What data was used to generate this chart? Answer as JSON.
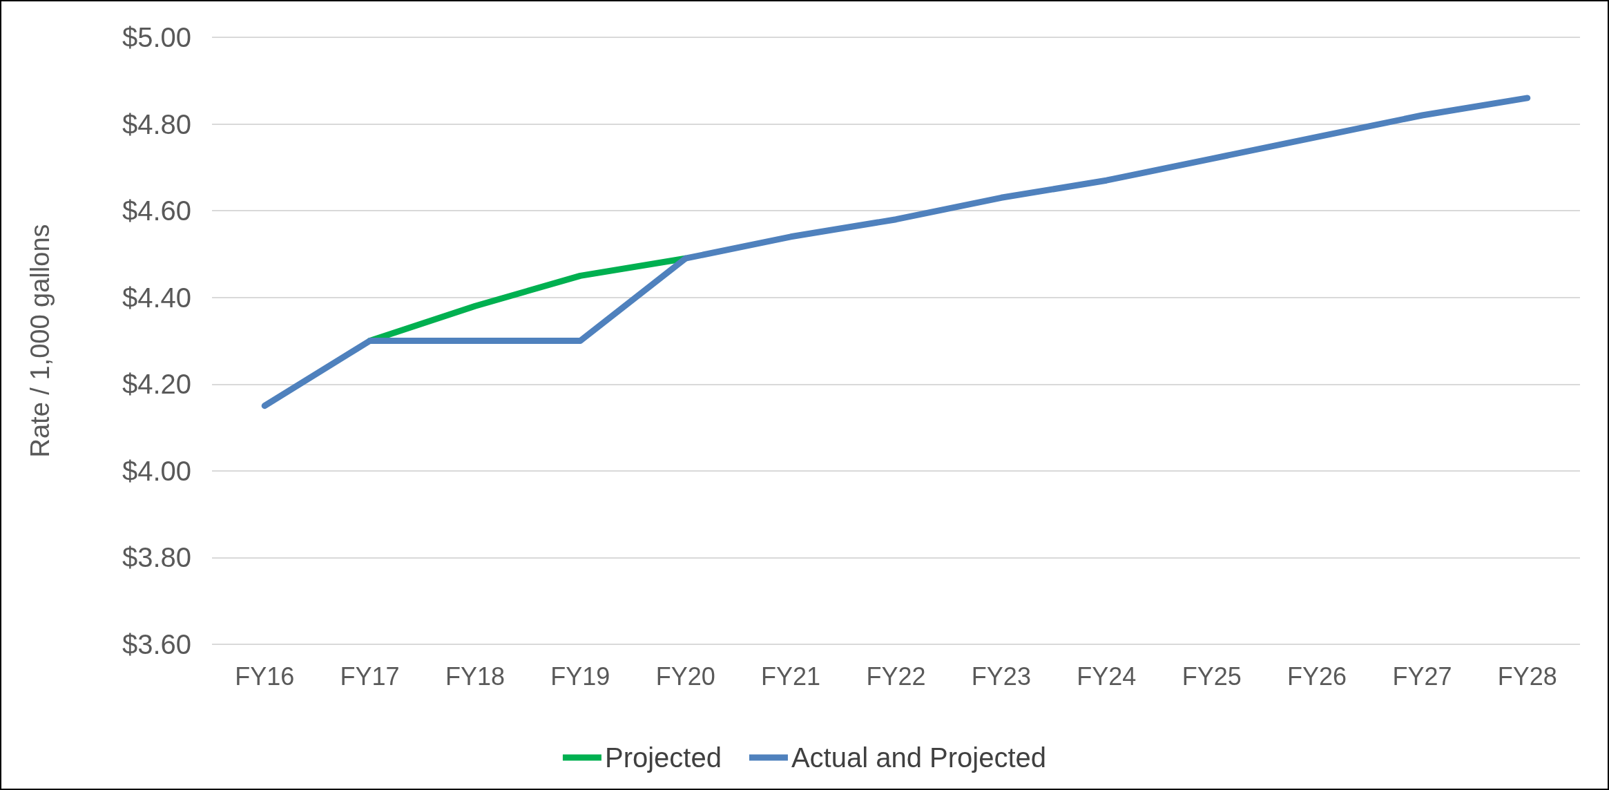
{
  "chart_data": {
    "type": "line",
    "ylabel": "Rate / 1,000 gallons",
    "categories": [
      "FY16",
      "FY17",
      "FY18",
      "FY19",
      "FY20",
      "FY21",
      "FY22",
      "FY23",
      "FY24",
      "FY25",
      "FY26",
      "FY27",
      "FY28"
    ],
    "series": [
      {
        "name": "Projected",
        "color": "#00b050",
        "values": [
          null,
          4.3,
          4.38,
          4.45,
          4.49,
          null,
          null,
          null,
          null,
          null,
          null,
          null,
          null
        ]
      },
      {
        "name": "Actual and Projected",
        "color": "#4f81bd",
        "values": [
          4.15,
          4.3,
          4.3,
          4.3,
          4.49,
          4.54,
          4.58,
          4.63,
          4.67,
          4.72,
          4.77,
          4.82,
          4.86
        ]
      }
    ],
    "ylim": [
      3.6,
      5.0
    ],
    "yticks": [
      {
        "value": 3.6,
        "label": "$3.60"
      },
      {
        "value": 3.8,
        "label": "$3.80"
      },
      {
        "value": 4.0,
        "label": "$4.00"
      },
      {
        "value": 4.2,
        "label": "$4.20"
      },
      {
        "value": 4.4,
        "label": "$4.40"
      },
      {
        "value": 4.6,
        "label": "$4.60"
      },
      {
        "value": 4.8,
        "label": "$4.80"
      },
      {
        "value": 5.0,
        "label": "$5.00"
      }
    ],
    "grid": "y",
    "legend": "bottom",
    "marker": "none",
    "line_style": "solid"
  }
}
